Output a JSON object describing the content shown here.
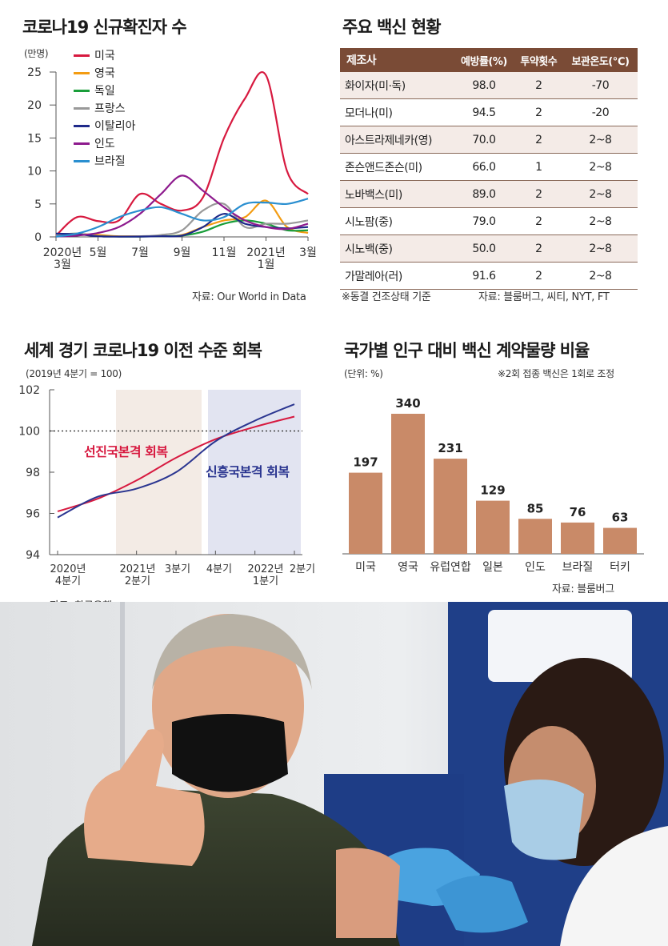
{
  "covid": {
    "title": "코로나19 신규확진자 수",
    "unit": "(만명)",
    "source": "자료: Our World in Data",
    "y_ticks": [
      "25",
      "20",
      "15",
      "10",
      "5",
      "0"
    ],
    "x_ticks": [
      "2020년\n3월",
      "5월",
      "7월",
      "9월",
      "11월",
      "2021년\n1월",
      "3월"
    ],
    "legend": [
      {
        "name": "미국",
        "color": "#d7193f"
      },
      {
        "name": "영국",
        "color": "#f39c12"
      },
      {
        "name": "독일",
        "color": "#1a9e3a"
      },
      {
        "name": "프랑스",
        "color": "#999999"
      },
      {
        "name": "이탈리아",
        "color": "#1f2a8a"
      },
      {
        "name": "인도",
        "color": "#8e1b8e"
      },
      {
        "name": "브라질",
        "color": "#2a8fd0"
      }
    ]
  },
  "vaccines": {
    "title": "주요 백신 현황",
    "headers": [
      "제조사",
      "예방률(%)",
      "투약횟수",
      "보관온도(℃)"
    ],
    "rows": [
      [
        "화이자(미·독)",
        "98.0",
        "2",
        "-70"
      ],
      [
        "모더나(미)",
        "94.5",
        "2",
        "-20"
      ],
      [
        "아스트라제네카(영)",
        "70.0",
        "2",
        "2~8"
      ],
      [
        "존슨앤드존슨(미)",
        "66.0",
        "1",
        "2~8"
      ],
      [
        "노바백스(미)",
        "89.0",
        "2",
        "2~8"
      ],
      [
        "시노팜(중)",
        "79.0",
        "2",
        "2~8"
      ],
      [
        "시노백(중)",
        "50.0",
        "2",
        "2~8"
      ],
      [
        "가말레아(러)",
        "91.6",
        "2",
        "2~8"
      ]
    ],
    "note": "※동결 건조상태 기준",
    "source": "자료: 블룸버그, 씨티, NYT, FT"
  },
  "economy": {
    "title": "세계 경기 코로나19 이전 수준 회복",
    "subtitle": "(2019년 4분기 = 100)",
    "source": "자료: 한국은행",
    "label_adv": "선진국본격 회복",
    "label_emg": "신흥국본격 회복",
    "y_ticks": [
      "102",
      "100",
      "98",
      "96",
      "94"
    ],
    "x_ticks": [
      "2020년\n4분기",
      "2021년\n2분기",
      "3분기",
      "4분기",
      "2022년\n1분기",
      "2분기"
    ],
    "colors": {
      "advanced": "#d7193f",
      "emerging": "#2a3590",
      "shade1": "#f3ebe5",
      "shade2": "#e2e4f1"
    }
  },
  "contracts": {
    "title": "국가별 인구 대비 백신 계약물량 비율",
    "unit": "(단위: %)",
    "note": "※2회 접종 백신은 1회로 조정",
    "source": "자료: 블룸버그",
    "bar_color": "#c98a68"
  },
  "chart_data": [
    {
      "type": "line",
      "title": "코로나19 신규확진자 수",
      "ylabel": "(만명)",
      "ylim": [
        0,
        25
      ],
      "x": [
        "2020-03",
        "2020-04",
        "2020-05",
        "2020-06",
        "2020-07",
        "2020-08",
        "2020-09",
        "2020-10",
        "2020-11",
        "2020-12",
        "2021-01",
        "2021-02",
        "2021-03"
      ],
      "series": [
        {
          "name": "미국",
          "values": [
            0.2,
            3.0,
            2.4,
            2.5,
            6.5,
            5.0,
            4.0,
            6.0,
            15.0,
            21.0,
            24.5,
            10.0,
            6.5
          ]
        },
        {
          "name": "영국",
          "values": [
            0.1,
            0.4,
            0.3,
            0.1,
            0.1,
            0.1,
            0.3,
            1.5,
            2.5,
            3.0,
            5.5,
            1.5,
            0.6
          ]
        },
        {
          "name": "독일",
          "values": [
            0.3,
            0.5,
            0.1,
            0.05,
            0.05,
            0.1,
            0.2,
            0.8,
            2.0,
            2.5,
            2.0,
            1.0,
            1.0
          ]
        },
        {
          "name": "프랑스",
          "values": [
            0.3,
            0.5,
            0.1,
            0.05,
            0.1,
            0.3,
            1.0,
            4.0,
            5.0,
            1.5,
            2.0,
            2.0,
            2.5
          ]
        },
        {
          "name": "이탈리아",
          "values": [
            0.5,
            0.4,
            0.1,
            0.05,
            0.05,
            0.1,
            0.2,
            1.5,
            3.5,
            2.0,
            1.5,
            1.3,
            1.5
          ]
        },
        {
          "name": "인도",
          "values": [
            0.05,
            0.2,
            0.6,
            1.5,
            3.5,
            6.5,
            9.3,
            7.0,
            4.5,
            2.5,
            1.5,
            1.2,
            2.0
          ]
        },
        {
          "name": "브라질",
          "values": [
            0.05,
            0.5,
            1.5,
            3.0,
            4.0,
            4.5,
            3.5,
            2.5,
            3.0,
            5.0,
            5.2,
            5.0,
            5.8
          ]
        }
      ]
    },
    {
      "type": "line",
      "title": "세계 경기 코로나19 이전 수준 회복",
      "ylim": [
        94,
        102
      ],
      "x": [
        "2020년 4분기",
        "2021년 1분기",
        "2021년 2분기",
        "2021년 3분기",
        "2021년 4분기",
        "2022년 1분기",
        "2022년 2분기"
      ],
      "reference_line": 100,
      "series": [
        {
          "name": "선진국",
          "values": [
            96.1,
            96.7,
            97.6,
            98.7,
            99.6,
            100.2,
            100.7
          ]
        },
        {
          "name": "신흥국",
          "values": [
            95.8,
            96.8,
            97.2,
            98.0,
            99.5,
            100.5,
            101.3
          ]
        }
      ]
    },
    {
      "type": "bar",
      "title": "국가별 인구 대비 백신 계약물량 비율",
      "categories": [
        "미국",
        "영국",
        "유럽연합",
        "일본",
        "인도",
        "브라질",
        "터키"
      ],
      "values": [
        197,
        340,
        231,
        129,
        85,
        76,
        63
      ]
    }
  ]
}
